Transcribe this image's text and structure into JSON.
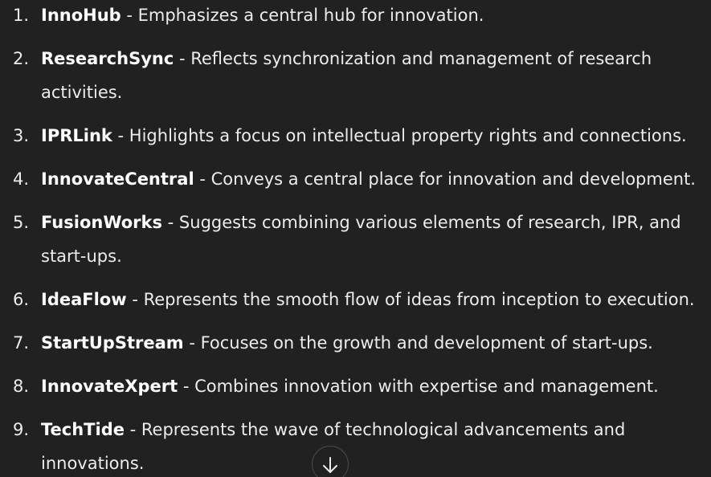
{
  "list": {
    "items": [
      {
        "number": "1.",
        "name": "InnoHub",
        "description": " - Emphasizes a central hub for innovation."
      },
      {
        "number": "2.",
        "name": "ResearchSync",
        "description": " - Reflects synchronization and management of research activities."
      },
      {
        "number": "3.",
        "name": "IPRLink",
        "description": " - Highlights a focus on intellectual property rights and connections."
      },
      {
        "number": "4.",
        "name": "InnovateCentral",
        "description": " - Conveys a central place for innovation and development."
      },
      {
        "number": "5.",
        "name": "FusionWorks",
        "description": " - Suggests combining various elements of research, IPR, and start-ups."
      },
      {
        "number": "6.",
        "name": "IdeaFlow",
        "description": " - Represents the smooth flow of ideas from inception to execution."
      },
      {
        "number": "7.",
        "name": "StartUpStream",
        "description": " - Focuses on the growth and development of start-ups."
      },
      {
        "number": "8.",
        "name": "InnovateXpert",
        "description": " - Combines innovation with expertise and management."
      },
      {
        "number": "9.",
        "name": "TechTide",
        "description": " - Represents the wave of technological advancements and innovations."
      }
    ]
  },
  "scroll_button": {
    "icon": "arrow-down-icon"
  },
  "colors": {
    "background": "#212121",
    "text": "#ececec",
    "name": "#ffffff"
  }
}
